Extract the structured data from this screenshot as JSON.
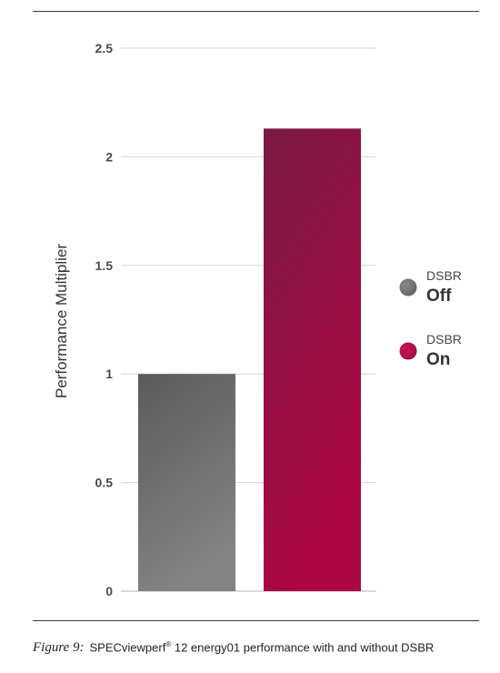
{
  "chart_data": {
    "type": "bar",
    "categories": [
      "DSBR Off",
      "DSBR On"
    ],
    "values": [
      1.0,
      2.13
    ],
    "ylabel": "Performance Multiplier",
    "xlabel": "",
    "ylim": [
      0,
      2.5
    ],
    "yticks": [
      "0",
      "0.5",
      "1",
      "1.5",
      "2",
      "2.5"
    ],
    "ytick_values": [
      0,
      0.5,
      1,
      1.5,
      2,
      2.5
    ],
    "grid": true,
    "legend": {
      "placement": "right",
      "entries": [
        {
          "line1": "DSBR",
          "line2": "Off",
          "color": "#636363"
        },
        {
          "line1": "DSBR",
          "line2": "On",
          "color": "#a8073f"
        }
      ]
    },
    "colors": {
      "off_top": "#5b5b5c",
      "off_bottom": "#838383",
      "on_top": "#7a1a42",
      "on_bottom": "#ad0642"
    }
  },
  "caption": {
    "figure_label": "Figure 9:",
    "text_before_sup": "SPECviewperf",
    "sup": "®",
    "text_after_sup": " 12 energy01 performance with and without DSBR"
  }
}
